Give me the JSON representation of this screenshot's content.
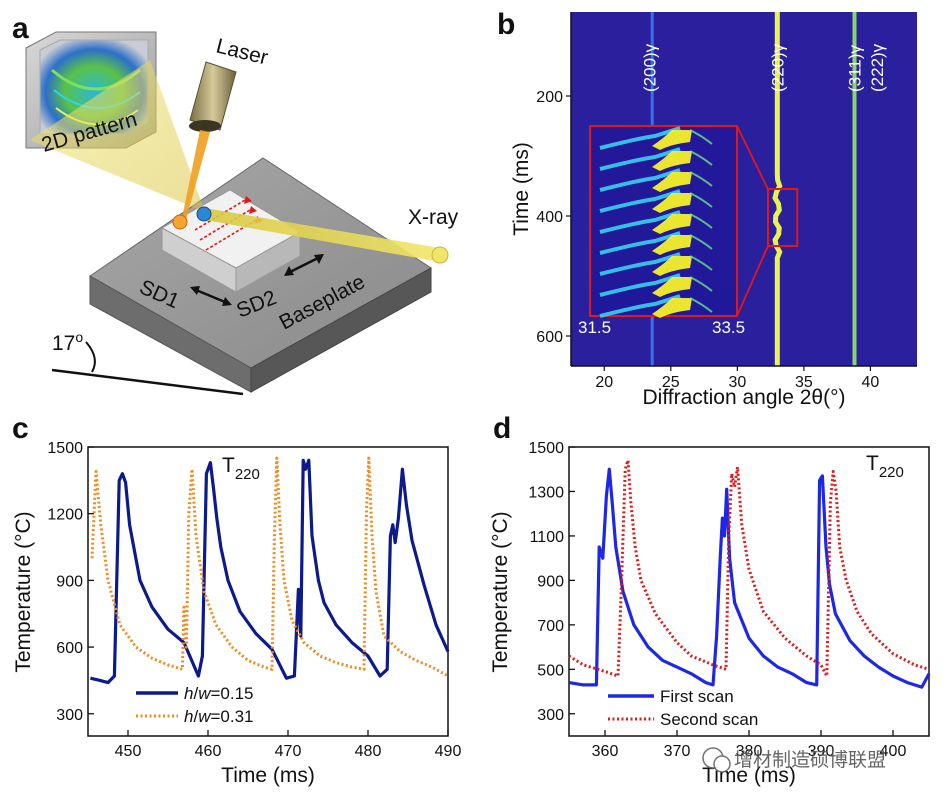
{
  "panel_labels": {
    "a": "a",
    "b": "b",
    "c": "c",
    "d": "d"
  },
  "scene": {
    "laser": "Laser",
    "pattern": "2D pattern",
    "xray": "X-ray",
    "sd1": "SD1",
    "sd2": "SD2",
    "baseplate": "Baseplate",
    "angle": "17",
    "angle_sup": "o"
  },
  "colors": {
    "navy": "#0d1a8c",
    "orange": "#f08a1c",
    "blue": "#1c28e6",
    "red": "#e01818",
    "map_bg": "#2a1f9c"
  },
  "chart_data": [
    {
      "id": "b",
      "type": "heatmap",
      "xlabel": "Diffraction angle 2θ(°)",
      "ylabel": "Time (ms)",
      "xlim": [
        17.5,
        43.5
      ],
      "ylim": [
        60,
        650
      ],
      "xticks": [
        20,
        25,
        30,
        35,
        40
      ],
      "yticks": [
        200,
        400,
        600
      ],
      "peak_labels": [
        {
          "text": "(200)γ",
          "x": 23.4
        },
        {
          "text": "(220)γ",
          "x": 33.0
        },
        {
          "text": "(311)γ",
          "x": 38.8
        },
        {
          "text": "(222)γ",
          "x": 40.5
        }
      ],
      "peak_positions": [
        23.6,
        33.0,
        38.8
      ],
      "zoom_box": {
        "x": [
          32.3,
          34.5
        ],
        "t": [
          355,
          450
        ]
      },
      "inset_labels": {
        "left": "31.5",
        "right": "33.5"
      }
    },
    {
      "id": "c",
      "type": "line",
      "xlabel": "Time (ms)",
      "ylabel": "Temperature (°C)",
      "annotation": "T",
      "annotation_sub": "220",
      "xlim": [
        445,
        490
      ],
      "ylim": [
        200,
        1500
      ],
      "xticks": [
        450,
        460,
        470,
        480,
        490
      ],
      "yticks": [
        300,
        600,
        900,
        1200,
        1500
      ],
      "series": [
        {
          "name": "h/w=0.15",
          "legend_italic_a": "h",
          "legend_sep": "/",
          "legend_italic_b": "w",
          "legend_value": "=0.15",
          "style": "solid",
          "color": "#0d1a8c",
          "x": [
            445.3,
            446.5,
            447.5,
            448.3,
            448.9,
            449.3,
            449.7,
            450.2,
            451.5,
            453,
            455,
            457,
            458.8,
            459.3,
            459.8,
            460.3,
            460.7,
            461.1,
            461.6,
            462.5,
            464,
            466,
            468,
            469.8,
            470.8,
            471.3,
            471.6,
            471.9,
            472.2,
            472.6,
            473.0,
            473.4,
            473.8,
            474.5,
            476,
            478,
            480,
            481.5,
            482.4,
            482.8,
            483.1,
            483.4,
            483.8,
            484.3,
            484.8,
            485.5,
            487,
            488.5,
            490
          ],
          "y": [
            460,
            450,
            440,
            470,
            1350,
            1380,
            1340,
            1150,
            900,
            780,
            680,
            620,
            470,
            560,
            1380,
            1430,
            1310,
            1180,
            1050,
            900,
            760,
            660,
            590,
            460,
            470,
            860,
            650,
            1440,
            1400,
            1440,
            1100,
            1000,
            900,
            800,
            700,
            620,
            560,
            470,
            500,
            1100,
            1150,
            1070,
            1180,
            1400,
            1240,
            1080,
            880,
            700,
            580
          ]
        },
        {
          "name": "h/w=0.31",
          "legend_italic_a": "h",
          "legend_sep": "/",
          "legend_italic_b": "w",
          "legend_value": "=0.31",
          "style": "dotted",
          "color": "#f08a1c",
          "x": [
            445.5,
            446.0,
            446.6,
            447.5,
            449,
            451,
            453,
            455,
            456.8,
            457.0,
            457.3,
            457.6,
            458.0,
            458.5,
            459.5,
            461,
            463,
            465,
            467,
            468.0,
            468.3,
            468.6,
            469.0,
            469.5,
            470.5,
            472,
            474,
            476,
            478,
            479.5,
            479.8,
            480.1,
            480.5,
            481.0,
            482,
            484,
            486,
            488,
            490
          ],
          "y": [
            1000,
            1390,
            1150,
            900,
            700,
            600,
            550,
            520,
            500,
            780,
            600,
            1200,
            1400,
            1100,
            850,
            700,
            600,
            540,
            510,
            500,
            1100,
            1450,
            1150,
            900,
            720,
            620,
            560,
            530,
            510,
            500,
            1200,
            1450,
            1100,
            850,
            650,
            580,
            540,
            510,
            470
          ]
        }
      ]
    },
    {
      "id": "d",
      "type": "line",
      "xlabel": "Time (ms)",
      "ylabel": "Temperature (°C)",
      "annotation": "T",
      "annotation_sub": "220",
      "xlim": [
        355,
        405
      ],
      "ylim": [
        200,
        1500
      ],
      "xticks": [
        360,
        370,
        380,
        390,
        400
      ],
      "yticks": [
        300,
        500,
        700,
        900,
        1100,
        1300,
        1500
      ],
      "series": [
        {
          "name": "First scan",
          "style": "solid",
          "color": "#1c28e6",
          "x": [
            355,
            357,
            358.8,
            359.2,
            359.7,
            360.2,
            360.6,
            361.0,
            361.5,
            362.5,
            364,
            366,
            368,
            370,
            372,
            374,
            375.0,
            375.5,
            376.0,
            376.3,
            376.6,
            376.9,
            377.3,
            378,
            380,
            382,
            384,
            386,
            388,
            389.4,
            389.8,
            390.2,
            390.7,
            391.2,
            392,
            394,
            396,
            398,
            400,
            402,
            404,
            405
          ],
          "y": [
            440,
            430,
            430,
            1050,
            1000,
            1280,
            1400,
            1250,
            1050,
            850,
            700,
            600,
            540,
            510,
            480,
            440,
            430,
            650,
            1000,
            1180,
            1100,
            1310,
            1000,
            800,
            640,
            560,
            510,
            480,
            440,
            430,
            1350,
            1370,
            1050,
            880,
            750,
            630,
            560,
            510,
            470,
            440,
            420,
            480
          ]
        },
        {
          "name": "Second scan",
          "style": "dotted",
          "color": "#e01818",
          "x": [
            355,
            357,
            360,
            361.8,
            362.3,
            362.8,
            363.2,
            363.6,
            364.2,
            365,
            367,
            370,
            372,
            375,
            376.8,
            377.2,
            377.6,
            378.0,
            378.4,
            379,
            380,
            382,
            385,
            388,
            390,
            390.8,
            391.3,
            391.7,
            392.1,
            392.6,
            393.5,
            395,
            397,
            400,
            403,
            405
          ],
          "y": [
            560,
            520,
            490,
            470,
            900,
            1400,
            1440,
            1250,
            1050,
            900,
            750,
            620,
            560,
            520,
            500,
            1100,
            1380,
            1320,
            1410,
            1150,
            950,
            760,
            640,
            560,
            520,
            470,
            1250,
            1390,
            1300,
            1050,
            900,
            760,
            660,
            570,
            520,
            500
          ]
        }
      ]
    }
  ],
  "watermark": "增材制造硕博联盟"
}
